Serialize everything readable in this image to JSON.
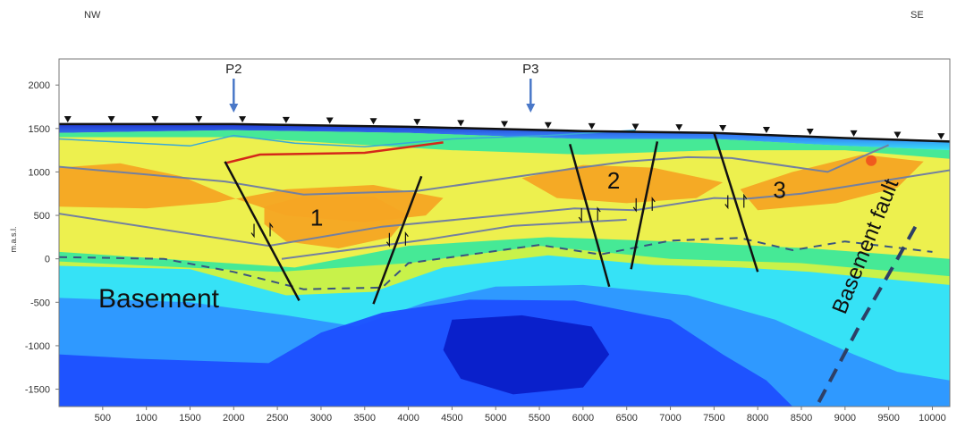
{
  "chart_data": {
    "type": "heatmap",
    "title": "",
    "ylabel": "m.a.s.l.",
    "xlabel": "",
    "direction_left": "NW",
    "direction_right": "SE",
    "xlim": [
      0,
      10200
    ],
    "ylim": [
      -1700,
      2300
    ],
    "x_ticks": [
      500,
      1000,
      1500,
      2000,
      2500,
      3000,
      3500,
      4000,
      4500,
      5000,
      5500,
      6000,
      6500,
      7000,
      7500,
      8000,
      8500,
      9000,
      9500,
      10000
    ],
    "y_ticks": [
      2000,
      1500,
      1000,
      500,
      0,
      -500,
      -1000,
      -1500
    ],
    "wells": [
      {
        "label": "P2",
        "x": 2000
      },
      {
        "label": "P3",
        "x": 5400
      }
    ],
    "block_labels": [
      {
        "label": "1",
        "x": 2950,
        "y": 380
      },
      {
        "label": "2",
        "x": 6350,
        "y": 810
      },
      {
        "label": "3",
        "x": 8250,
        "y": 700
      }
    ],
    "unit_labels": [
      {
        "label": "Basement",
        "x": 450,
        "y": -560
      },
      {
        "label": "Basement fault",
        "x": 9000,
        "y": -650
      }
    ],
    "station_x": [
      100,
      600,
      1100,
      1600,
      2100,
      2600,
      3100,
      3600,
      4100,
      4600,
      5100,
      5600,
      6100,
      6600,
      7100,
      7600,
      8100,
      8600,
      9100,
      9600,
      10100
    ],
    "topography": [
      [
        0,
        1550
      ],
      [
        2000,
        1550
      ],
      [
        4000,
        1520
      ],
      [
        6000,
        1470
      ],
      [
        7500,
        1450
      ],
      [
        9000,
        1390
      ],
      [
        10200,
        1350
      ]
    ],
    "resistivity_zones": [
      {
        "name": "shallow_layer",
        "points": [
          [
            0,
            1550
          ],
          [
            2000,
            1550
          ],
          [
            4000,
            1520
          ],
          [
            6000,
            1470
          ],
          [
            7500,
            1450
          ],
          [
            9000,
            1390
          ],
          [
            10200,
            1350
          ],
          [
            10200,
            1250
          ],
          [
            9000,
            1300
          ],
          [
            7500,
            1380
          ],
          [
            6000,
            1380
          ],
          [
            4000,
            1450
          ],
          [
            2000,
            1480
          ],
          [
            0,
            1450
          ]
        ]
      },
      {
        "name": "green_upper",
        "points": [
          [
            0,
            1450
          ],
          [
            2000,
            1480
          ],
          [
            4000,
            1450
          ],
          [
            6000,
            1380
          ],
          [
            7500,
            1380
          ],
          [
            9000,
            1300
          ],
          [
            10200,
            1250
          ],
          [
            10200,
            -200
          ],
          [
            8500,
            -50
          ],
          [
            7000,
            0
          ],
          [
            5500,
            150
          ],
          [
            4000,
            -50
          ],
          [
            2500,
            -150
          ],
          [
            0,
            -30
          ]
        ]
      },
      {
        "name": "yellow_band",
        "points": [
          [
            0,
            1400
          ],
          [
            2000,
            1400
          ],
          [
            4500,
            1250
          ],
          [
            6000,
            1200
          ],
          [
            7500,
            1250
          ],
          [
            9000,
            1250
          ],
          [
            10200,
            1150
          ],
          [
            10200,
            0
          ],
          [
            8600,
            120
          ],
          [
            7000,
            200
          ],
          [
            5600,
            250
          ],
          [
            4000,
            150
          ],
          [
            2700,
            -100
          ],
          [
            0,
            80
          ]
        ]
      },
      {
        "name": "orange_body_left",
        "points": [
          [
            0,
            1050
          ],
          [
            700,
            1100
          ],
          [
            1400,
            950
          ],
          [
            2000,
            700
          ],
          [
            2600,
            500
          ],
          [
            3500,
            420
          ],
          [
            4200,
            500
          ],
          [
            4400,
            700
          ],
          [
            3600,
            850
          ],
          [
            2600,
            800
          ],
          [
            1800,
            650
          ],
          [
            1000,
            580
          ],
          [
            0,
            600
          ]
        ]
      },
      {
        "name": "orange_body_1",
        "points": [
          [
            2350,
            600
          ],
          [
            2800,
            720
          ],
          [
            3600,
            720
          ],
          [
            4000,
            500
          ],
          [
            3800,
            250
          ],
          [
            3200,
            120
          ],
          [
            2600,
            200
          ],
          [
            2350,
            400
          ]
        ]
      },
      {
        "name": "orange_body_mid",
        "points": [
          [
            5300,
            930
          ],
          [
            6000,
            1080
          ],
          [
            6800,
            1050
          ],
          [
            7600,
            880
          ],
          [
            7300,
            700
          ],
          [
            6500,
            640
          ],
          [
            5700,
            700
          ]
        ]
      },
      {
        "name": "orange_body_right",
        "points": [
          [
            7800,
            800
          ],
          [
            8400,
            1000
          ],
          [
            9200,
            1200
          ],
          [
            9900,
            1120
          ],
          [
            9600,
            820
          ],
          [
            8900,
            640
          ],
          [
            8000,
            560
          ]
        ]
      },
      {
        "name": "cyan_mid",
        "points": [
          [
            0,
            -80
          ],
          [
            1500,
            -120
          ],
          [
            2600,
            -420
          ],
          [
            3600,
            -380
          ],
          [
            4400,
            -100
          ],
          [
            5600,
            40
          ],
          [
            6800,
            -70
          ],
          [
            7800,
            -100
          ],
          [
            8600,
            -150
          ],
          [
            10200,
            -300
          ],
          [
            10200,
            -1700
          ],
          [
            0,
            -1700
          ]
        ]
      },
      {
        "name": "lightblue_deep",
        "points": [
          [
            0,
            -450
          ],
          [
            1500,
            -500
          ],
          [
            2600,
            -650
          ],
          [
            3400,
            -780
          ],
          [
            4200,
            -500
          ],
          [
            5000,
            -320
          ],
          [
            6000,
            -300
          ],
          [
            7200,
            -420
          ],
          [
            8200,
            -700
          ],
          [
            9100,
            -1100
          ],
          [
            9600,
            -1300
          ],
          [
            10200,
            -1400
          ],
          [
            10200,
            -1700
          ],
          [
            0,
            -1700
          ]
        ]
      },
      {
        "name": "blue_deep",
        "points": [
          [
            0,
            -1100
          ],
          [
            900,
            -1150
          ],
          [
            2400,
            -1200
          ],
          [
            3000,
            -850
          ],
          [
            3700,
            -620
          ],
          [
            4700,
            -470
          ],
          [
            5900,
            -480
          ],
          [
            7000,
            -700
          ],
          [
            7600,
            -1100
          ],
          [
            8100,
            -1400
          ],
          [
            8400,
            -1700
          ],
          [
            0,
            -1700
          ]
        ]
      },
      {
        "name": "darkblue_core",
        "points": [
          [
            4500,
            -700
          ],
          [
            5300,
            -650
          ],
          [
            6100,
            -780
          ],
          [
            6300,
            -1100
          ],
          [
            6000,
            -1480
          ],
          [
            5200,
            -1560
          ],
          [
            4600,
            -1380
          ],
          [
            4400,
            -1050
          ]
        ]
      }
    ],
    "horizons": [
      {
        "name": "upper_cyan",
        "points": [
          [
            0,
            1380
          ],
          [
            1500,
            1300
          ],
          [
            2000,
            1420
          ],
          [
            2700,
            1330
          ],
          [
            3500,
            1290
          ],
          [
            4500,
            1380
          ],
          [
            5600,
            1420
          ],
          [
            6600,
            1480
          ]
        ]
      },
      {
        "name": "red_horizon",
        "points": [
          [
            1900,
            1100
          ],
          [
            2300,
            1200
          ],
          [
            3500,
            1220
          ],
          [
            4400,
            1340
          ]
        ]
      },
      {
        "name": "top_reservoir",
        "points": [
          [
            0,
            1060
          ],
          [
            1900,
            890
          ],
          [
            2800,
            740
          ],
          [
            4100,
            780
          ],
          [
            5900,
            1040
          ],
          [
            6500,
            1120
          ],
          [
            7200,
            1170
          ],
          [
            7700,
            1160
          ],
          [
            8800,
            1000
          ],
          [
            9500,
            1310
          ]
        ]
      },
      {
        "name": "base_reservoir",
        "points": [
          [
            0,
            520
          ],
          [
            2400,
            150
          ],
          [
            3700,
            370
          ],
          [
            5900,
            580
          ],
          [
            6600,
            560
          ],
          [
            7500,
            700
          ],
          [
            7850,
            690
          ],
          [
            8500,
            750
          ],
          [
            10200,
            1020
          ]
        ]
      },
      {
        "name": "lower_layer",
        "points": [
          [
            2550,
            0
          ],
          [
            4200,
            220
          ],
          [
            5200,
            380
          ],
          [
            6500,
            450
          ]
        ]
      }
    ],
    "dashed_horizons": [
      {
        "name": "basement_top",
        "points": [
          [
            0,
            20
          ],
          [
            1200,
            0
          ],
          [
            2000,
            -150
          ],
          [
            2800,
            -350
          ],
          [
            3700,
            -330
          ],
          [
            4000,
            -50
          ],
          [
            5500,
            160
          ],
          [
            6200,
            50
          ],
          [
            7000,
            210
          ],
          [
            7800,
            240
          ],
          [
            8400,
            100
          ],
          [
            9000,
            200
          ],
          [
            10000,
            80
          ]
        ]
      }
    ],
    "faults": [
      {
        "name": "fault_1_west",
        "points": [
          [
            1900,
            1120
          ],
          [
            2750,
            -480
          ]
        ]
      },
      {
        "name": "fault_1_east",
        "points": [
          [
            3600,
            -520
          ],
          [
            4150,
            950
          ]
        ]
      },
      {
        "name": "fault_2_west",
        "points": [
          [
            5850,
            1320
          ],
          [
            6300,
            -320
          ]
        ]
      },
      {
        "name": "fault_2_east",
        "points": [
          [
            6550,
            -120
          ],
          [
            6850,
            1350
          ]
        ]
      },
      {
        "name": "fault_3",
        "points": [
          [
            7500,
            1450
          ],
          [
            8000,
            -150
          ]
        ]
      }
    ],
    "basement_fault_dashed": {
      "name": "basement_fault",
      "points": [
        [
          8700,
          -1650
        ],
        [
          9200,
          -700
        ],
        [
          9600,
          0
        ],
        [
          9850,
          450
        ]
      ]
    },
    "colors": {
      "deep_blue": "#0a1ec8",
      "blue": "#1e4fff",
      "light_blue": "#2f95ff",
      "cyan": "#2ee0ff",
      "green": "#3fe89a",
      "yellow_green": "#c8f24a",
      "yellow": "#f7f04a",
      "orange": "#f6a523",
      "red_orange": "#f05a1e",
      "horizon": "#7380a0",
      "red_line": "#d4281a",
      "fault": "#111111",
      "well_arrow": "#4a78c8"
    }
  }
}
